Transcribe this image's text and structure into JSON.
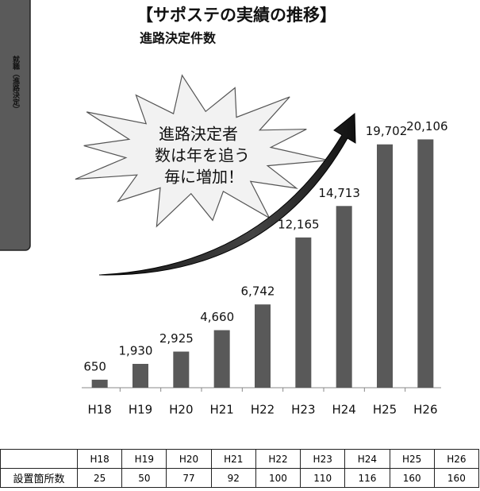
{
  "sidebar_label": "就職（進路決定）",
  "callout": [
    "進路決定者",
    "数は年を追う",
    "毎に増加！"
  ],
  "chart_data": {
    "type": "bar",
    "title": "【サポステの実績の推移】",
    "subtitle": "進路決定件数",
    "categories": [
      "H18",
      "H19",
      "H20",
      "H21",
      "H22",
      "H23",
      "H24",
      "H25",
      "H26"
    ],
    "values": [
      650,
      1930,
      2925,
      4660,
      6742,
      12165,
      14713,
      19702,
      20106
    ],
    "value_labels": [
      "650",
      "1,930",
      "2,925",
      "4,660",
      "6,742",
      "12,165",
      "14,713",
      "19,702",
      "20,106"
    ],
    "color": "#595959",
    "ylim": [
      0,
      22000
    ]
  },
  "table": {
    "header": [
      "H18",
      "H19",
      "H20",
      "H21",
      "H22",
      "H23",
      "H24",
      "H25",
      "H26"
    ],
    "row_label": "設置箇所数",
    "row": [
      25,
      50,
      77,
      92,
      100,
      110,
      116,
      160,
      160
    ]
  }
}
